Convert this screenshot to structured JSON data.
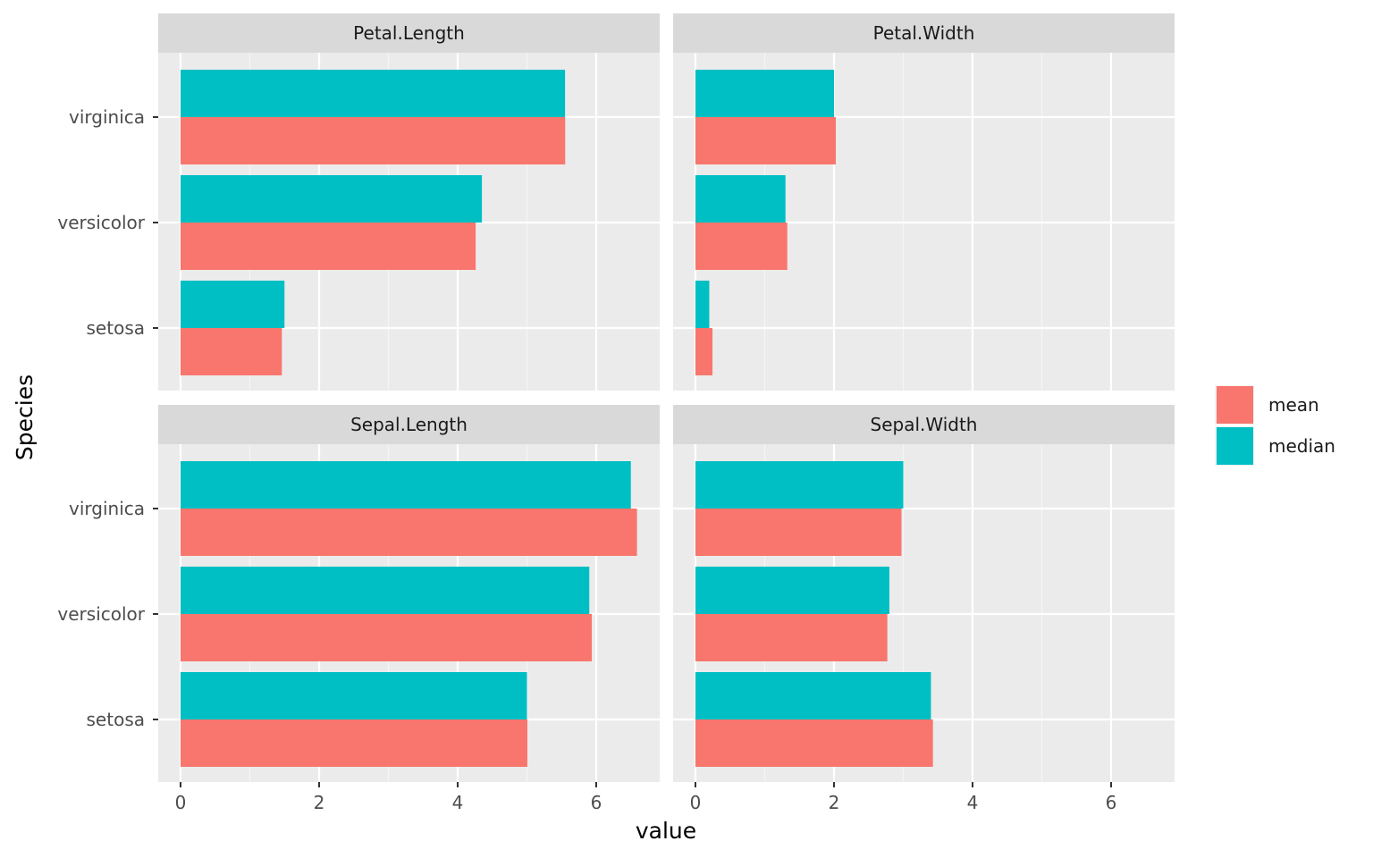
{
  "chart_data": {
    "type": "bar",
    "orientation": "horizontal",
    "facet_layout": "2x2",
    "xlabel": "value",
    "ylabel": "Species",
    "xlim": [
      0,
      6.9
    ],
    "x_ticks": [
      0,
      2,
      4,
      6
    ],
    "categories": [
      "setosa",
      "versicolor",
      "virginica"
    ],
    "grid": true,
    "legend_position": "right",
    "legend": [
      {
        "name": "mean",
        "color": "#F8766D"
      },
      {
        "name": "median",
        "color": "#00BFC4"
      }
    ],
    "panels": [
      {
        "title": "Petal.Length",
        "series": [
          {
            "name": "mean",
            "values": [
              1.462,
              4.26,
              5.552
            ]
          },
          {
            "name": "median",
            "values": [
              1.5,
              4.35,
              5.55
            ]
          }
        ]
      },
      {
        "title": "Petal.Width",
        "series": [
          {
            "name": "mean",
            "values": [
              0.246,
              1.326,
              2.026
            ]
          },
          {
            "name": "median",
            "values": [
              0.2,
              1.3,
              2.0
            ]
          }
        ]
      },
      {
        "title": "Sepal.Length",
        "series": [
          {
            "name": "mean",
            "values": [
              5.006,
              5.936,
              6.588
            ]
          },
          {
            "name": "median",
            "values": [
              5.0,
              5.9,
              6.5
            ]
          }
        ]
      },
      {
        "title": "Sepal.Width",
        "series": [
          {
            "name": "mean",
            "values": [
              3.428,
              2.77,
              2.974
            ]
          },
          {
            "name": "median",
            "values": [
              3.4,
              2.8,
              3.0
            ]
          }
        ]
      }
    ]
  }
}
